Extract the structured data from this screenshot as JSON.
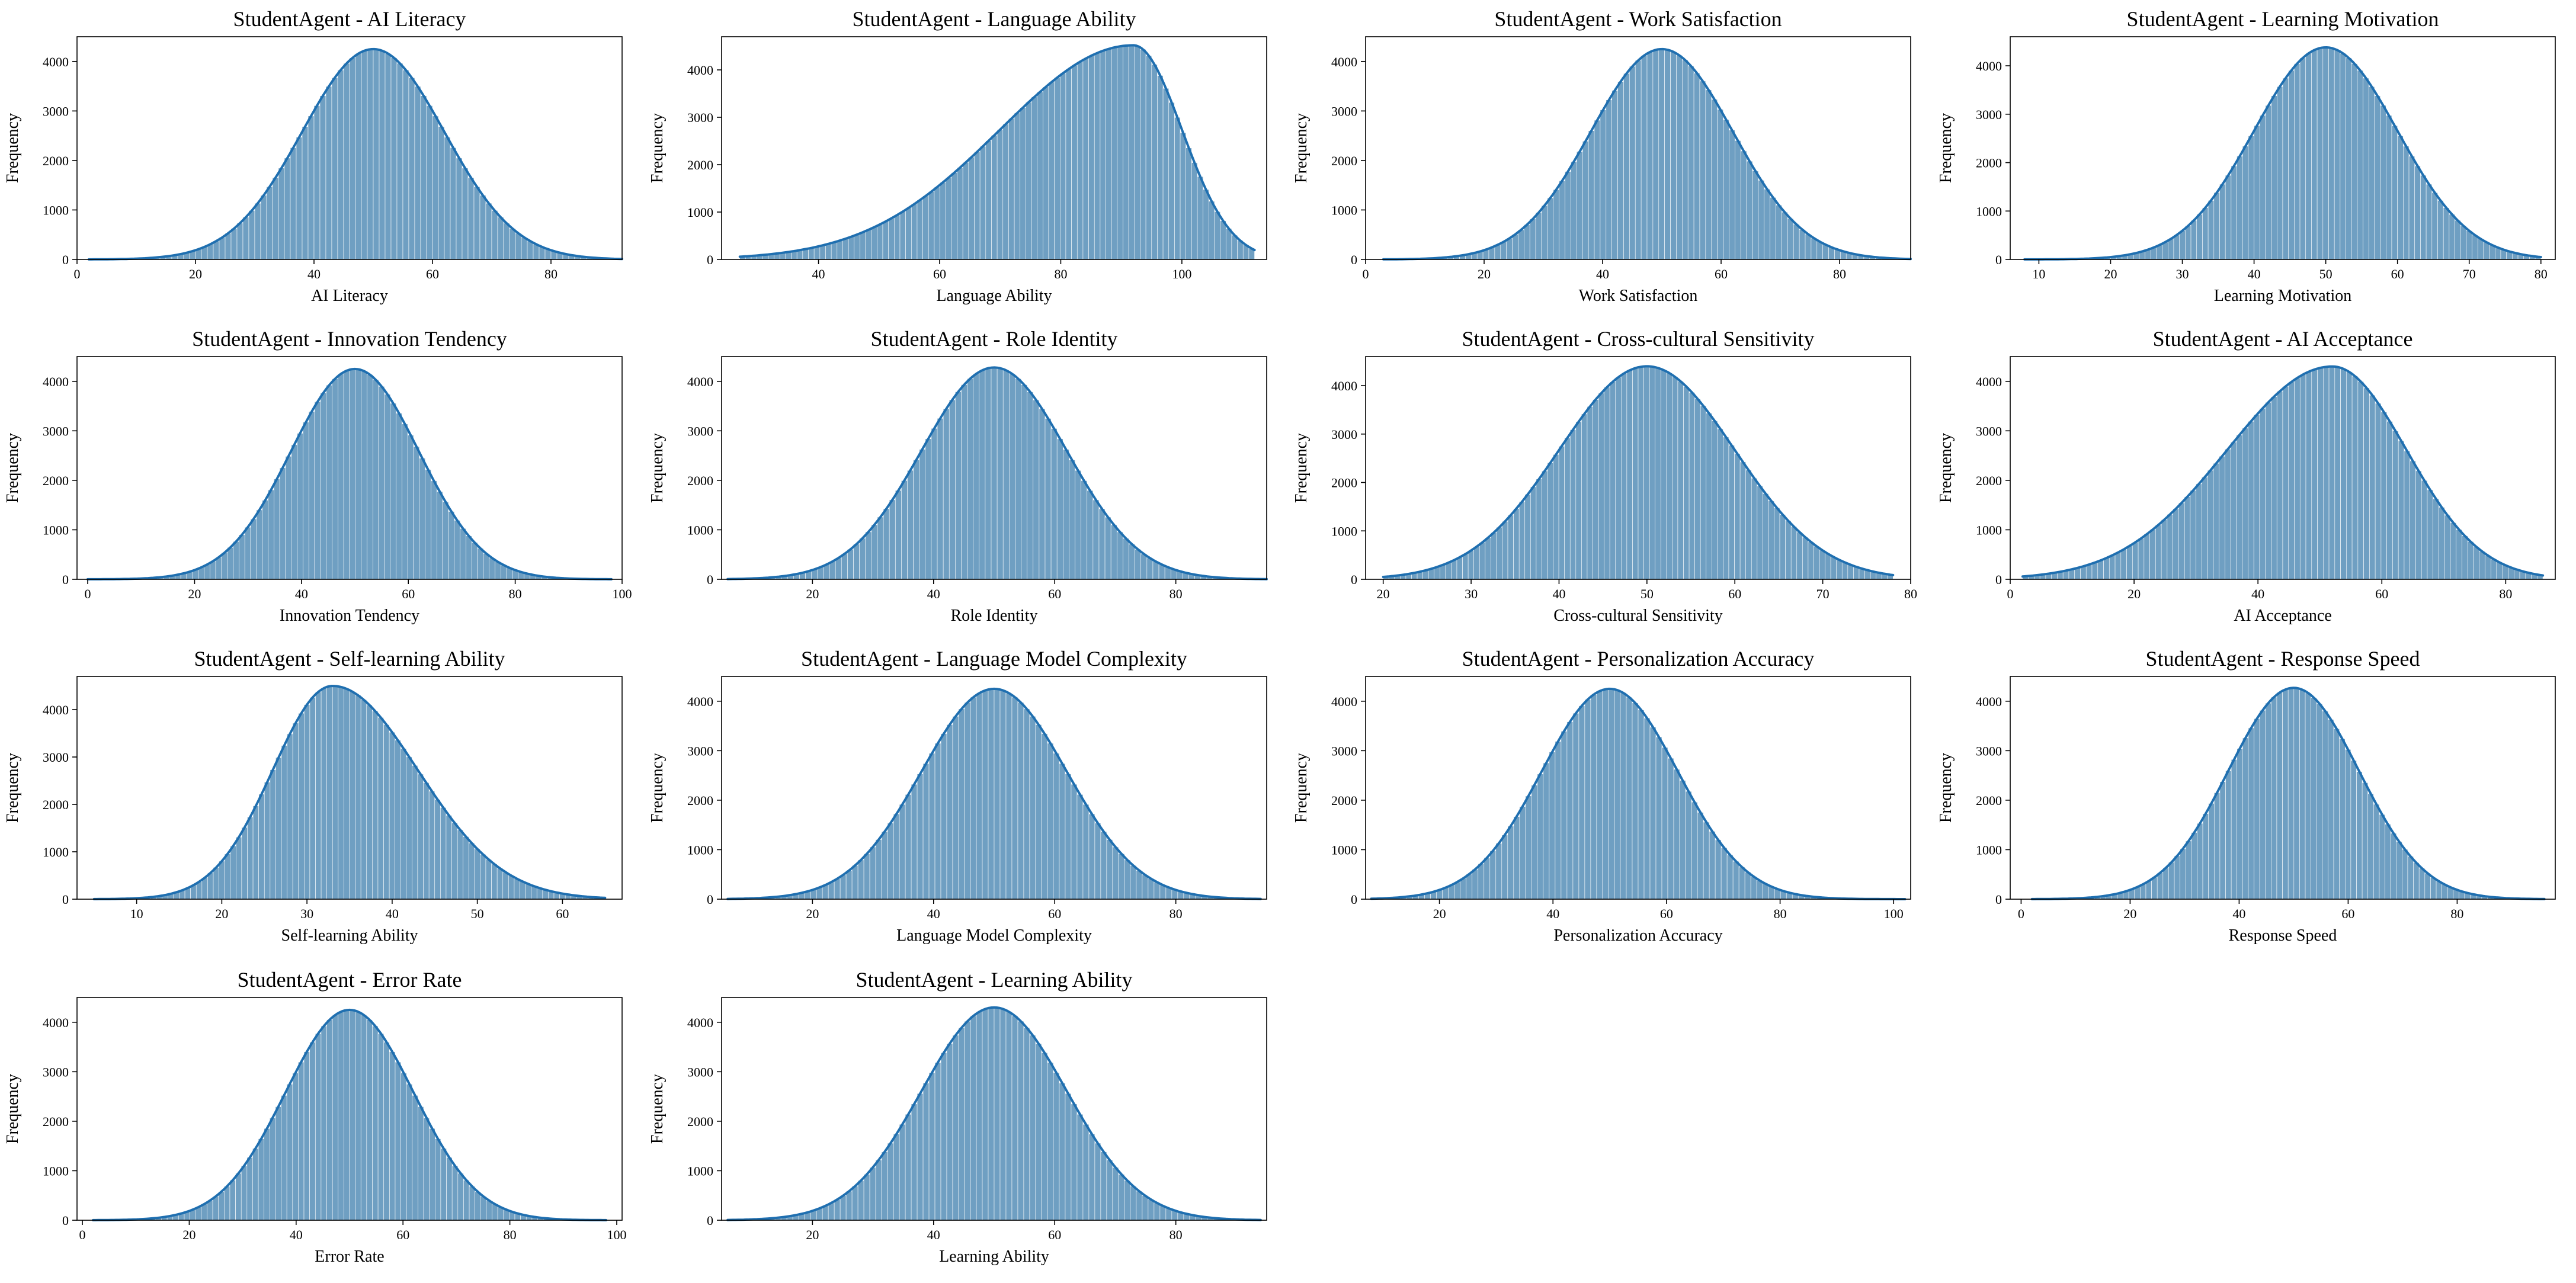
{
  "figure": {
    "bar_color": "#6f9fc2",
    "line_color": "#1f6fb0",
    "ylabel": "Frequency"
  },
  "chart_data": [
    {
      "type": "bar",
      "title": "StudentAgent - AI Literacy",
      "xlabel": "AI Literacy",
      "ylabel": "Frequency",
      "xlim": [
        0,
        92
      ],
      "xticks": [
        0,
        20,
        40,
        60,
        80
      ],
      "ylim": [
        0,
        4500
      ],
      "yticks": [
        0,
        1000,
        2000,
        3000,
        4000
      ],
      "range": [
        2,
        92
      ],
      "peak": 4250,
      "mode": "gauss",
      "mean": 50,
      "sd": 12
    },
    {
      "type": "bar",
      "title": "StudentAgent - Language Ability",
      "xlabel": "Language Ability",
      "ylabel": "Frequency",
      "xlim": [
        24,
        114
      ],
      "xticks": [
        40,
        60,
        80,
        100
      ],
      "ylim": [
        0,
        4700
      ],
      "yticks": [
        0,
        1000,
        2000,
        3000,
        4000
      ],
      "range": [
        27,
        112
      ],
      "peak": 4520,
      "mode": "skew",
      "center": 92,
      "sdl": 22,
      "sdr": 8
    },
    {
      "type": "bar",
      "title": "StudentAgent - Work Satisfaction",
      "xlabel": "Work Satisfaction",
      "ylabel": "Frequency",
      "xlim": [
        0,
        92
      ],
      "xticks": [
        0,
        20,
        40,
        60,
        80
      ],
      "ylim": [
        0,
        4500
      ],
      "yticks": [
        0,
        1000,
        2000,
        3000,
        4000
      ],
      "range": [
        3,
        92
      ],
      "peak": 4250,
      "mode": "gauss",
      "mean": 50,
      "sd": 12
    },
    {
      "type": "bar",
      "title": "StudentAgent - Learning Motivation",
      "xlabel": "Learning Motivation",
      "ylabel": "Frequency",
      "xlim": [
        6,
        82
      ],
      "xticks": [
        10,
        20,
        30,
        40,
        50,
        60,
        70,
        80
      ],
      "ylim": [
        0,
        4600
      ],
      "yticks": [
        0,
        1000,
        2000,
        3000,
        4000
      ],
      "range": [
        8,
        80
      ],
      "peak": 4380,
      "mode": "gauss",
      "mean": 50,
      "sd": 10
    },
    {
      "type": "bar",
      "title": "StudentAgent - Innovation Tendency",
      "xlabel": "Innovation Tendency",
      "ylabel": "Frequency",
      "xlim": [
        -2,
        100
      ],
      "xticks": [
        0,
        20,
        40,
        60,
        80,
        100
      ],
      "ylim": [
        0,
        4500
      ],
      "yticks": [
        0,
        1000,
        2000,
        3000,
        4000
      ],
      "range": [
        0,
        98
      ],
      "peak": 4250,
      "mode": "gauss",
      "mean": 50,
      "sd": 12
    },
    {
      "type": "bar",
      "title": "StudentAgent - Role Identity",
      "xlabel": "Role Identity",
      "ylabel": "Frequency",
      "xlim": [
        5,
        95
      ],
      "xticks": [
        20,
        40,
        60,
        80
      ],
      "ylim": [
        0,
        4500
      ],
      "yticks": [
        0,
        1000,
        2000,
        3000,
        4000
      ],
      "range": [
        6,
        95
      ],
      "peak": 4280,
      "mode": "gauss",
      "mean": 50,
      "sd": 12
    },
    {
      "type": "bar",
      "title": "StudentAgent - Cross-cultural Sensitivity",
      "xlabel": "Cross-cultural Sensitivity",
      "ylabel": "Frequency",
      "xlim": [
        18,
        80
      ],
      "xticks": [
        20,
        30,
        40,
        50,
        60,
        70,
        80
      ],
      "ylim": [
        0,
        4600
      ],
      "yticks": [
        0,
        1000,
        2000,
        3000,
        4000
      ],
      "range": [
        20,
        78
      ],
      "peak": 4400,
      "mode": "gauss",
      "mean": 50,
      "sd": 10
    },
    {
      "type": "bar",
      "title": "StudentAgent - AI Acceptance",
      "xlabel": "AI Acceptance",
      "ylabel": "Frequency",
      "xlim": [
        0,
        88
      ],
      "xticks": [
        0,
        20,
        40,
        60,
        80
      ],
      "ylim": [
        0,
        4500
      ],
      "yticks": [
        0,
        1000,
        2000,
        3000,
        4000
      ],
      "range": [
        2,
        86
      ],
      "peak": 4300,
      "mode": "skew",
      "center": 52,
      "sdl": 17,
      "sdr": 12
    },
    {
      "type": "bar",
      "title": "StudentAgent - Self-learning Ability",
      "xlabel": "Self-learning Ability",
      "ylabel": "Frequency",
      "xlim": [
        3,
        67
      ],
      "xticks": [
        10,
        20,
        30,
        40,
        50,
        60
      ],
      "ylim": [
        0,
        4700
      ],
      "yticks": [
        0,
        1000,
        2000,
        3000,
        4000
      ],
      "range": [
        5,
        65
      ],
      "peak": 4500,
      "mode": "skew",
      "center": 33,
      "sdl": 7,
      "sdr": 10
    },
    {
      "type": "bar",
      "title": "StudentAgent - Language Model Complexity",
      "xlabel": "Language Model Complexity",
      "ylabel": "Frequency",
      "xlim": [
        5,
        95
      ],
      "xticks": [
        20,
        40,
        60,
        80
      ],
      "ylim": [
        0,
        4500
      ],
      "yticks": [
        0,
        1000,
        2000,
        3000,
        4000
      ],
      "range": [
        6,
        94
      ],
      "peak": 4250,
      "mode": "gauss",
      "mean": 50,
      "sd": 12
    },
    {
      "type": "bar",
      "title": "StudentAgent - Personalization Accuracy",
      "xlabel": "Personalization Accuracy",
      "ylabel": "Frequency",
      "xlim": [
        7,
        103
      ],
      "xticks": [
        20,
        40,
        60,
        80,
        100
      ],
      "ylim": [
        0,
        4500
      ],
      "yticks": [
        0,
        1000,
        2000,
        3000,
        4000
      ],
      "range": [
        8,
        102
      ],
      "peak": 4250,
      "mode": "gauss",
      "mean": 50,
      "sd": 12
    },
    {
      "type": "bar",
      "title": "StudentAgent - Response Speed",
      "xlabel": "Response Speed",
      "ylabel": "Frequency",
      "xlim": [
        -2,
        98
      ],
      "xticks": [
        0,
        20,
        40,
        60,
        80
      ],
      "ylim": [
        0,
        4500
      ],
      "yticks": [
        0,
        1000,
        2000,
        3000,
        4000
      ],
      "range": [
        2,
        96
      ],
      "peak": 4270,
      "mode": "gauss",
      "mean": 50,
      "sd": 12
    },
    {
      "type": "bar",
      "title": "StudentAgent - Error Rate",
      "xlabel": "Error Rate",
      "ylabel": "Frequency",
      "xlim": [
        -1,
        101
      ],
      "xticks": [
        0,
        20,
        40,
        60,
        80,
        100
      ],
      "ylim": [
        0,
        4500
      ],
      "yticks": [
        0,
        1000,
        2000,
        3000,
        4000
      ],
      "range": [
        2,
        98
      ],
      "peak": 4250,
      "mode": "gauss",
      "mean": 50,
      "sd": 12
    },
    {
      "type": "bar",
      "title": "StudentAgent - Learning Ability",
      "xlabel": "Learning Ability",
      "ylabel": "Frequency",
      "xlim": [
        5,
        95
      ],
      "xticks": [
        20,
        40,
        60,
        80
      ],
      "ylim": [
        0,
        4500
      ],
      "yticks": [
        0,
        1000,
        2000,
        3000,
        4000
      ],
      "range": [
        6,
        94
      ],
      "peak": 4300,
      "mode": "gauss",
      "mean": 50,
      "sd": 12
    }
  ]
}
